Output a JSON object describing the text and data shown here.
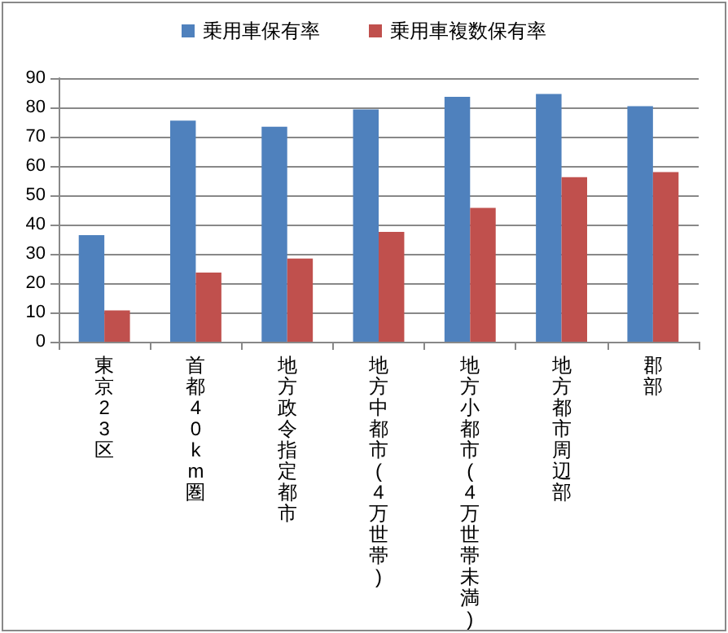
{
  "chart_data": {
    "type": "bar",
    "categories": [
      "東京23区",
      "首都40km圏",
      "地方政令指定都市",
      "地方中都市(4万世帯)",
      "地方小都市(4万世帯未満)",
      "地方都市周辺部",
      "郡部"
    ],
    "series": [
      {
        "name": "乗用車保有率",
        "color": "#4f81bd",
        "values": [
          36.4,
          75.5,
          73.4,
          79.3,
          83.6,
          84.6,
          80.4
        ]
      },
      {
        "name": "乗用車複数保有率",
        "color": "#c0504d",
        "values": [
          10.7,
          23.6,
          28.4,
          37.5,
          45.7,
          56.2,
          57.9
        ]
      }
    ],
    "ylim": [
      0,
      90
    ],
    "yticks": [
      0,
      10,
      20,
      30,
      40,
      50,
      60,
      70,
      80,
      90
    ],
    "grid": "y",
    "legend": "top"
  }
}
